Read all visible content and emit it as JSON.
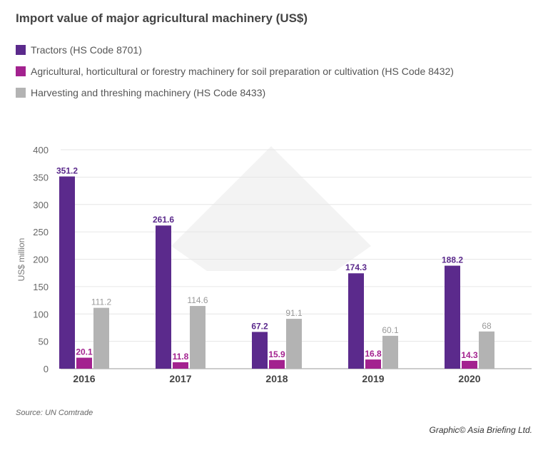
{
  "chart_data": {
    "type": "bar",
    "title": "Import value of major agricultural machinery (US$)",
    "ylabel": "US$ million",
    "xlabel": "",
    "ylim": [
      0,
      400
    ],
    "yticks": [
      0,
      50,
      100,
      150,
      200,
      250,
      300,
      350,
      400
    ],
    "grid": true,
    "legend_placement": "top-left",
    "categories": [
      "2016",
      "2017",
      "2018",
      "2019",
      "2020"
    ],
    "series": [
      {
        "name": "Tractors (HS Code 8701)",
        "color": "#5b2a8c",
        "values": [
          351.2,
          261.6,
          67.2,
          174.3,
          188.2
        ],
        "labels": [
          "351.2",
          "261.6",
          "67.2",
          "174.3",
          "188.2"
        ]
      },
      {
        "name": "Agricultural, horticultural or forestry machinery for soil preparation or cultivation (HS Code 8432)",
        "color": "#a3228f",
        "values": [
          20.1,
          11.8,
          15.9,
          16.8,
          14.3
        ],
        "labels": [
          "20.1",
          "11.8",
          "15.9",
          "16.8",
          "14.3"
        ]
      },
      {
        "name": "Harvesting and threshing machinery (HS Code 8433)",
        "color": "#b3b3b3",
        "values": [
          111.2,
          114.6,
          91.1,
          60.1,
          68
        ],
        "labels": [
          "111.2",
          "114.6",
          "91.1",
          "60.1",
          "68"
        ]
      }
    ]
  },
  "source": "Source: UN Comtrade",
  "credit": "Graphic© Asia Briefing Ltd."
}
